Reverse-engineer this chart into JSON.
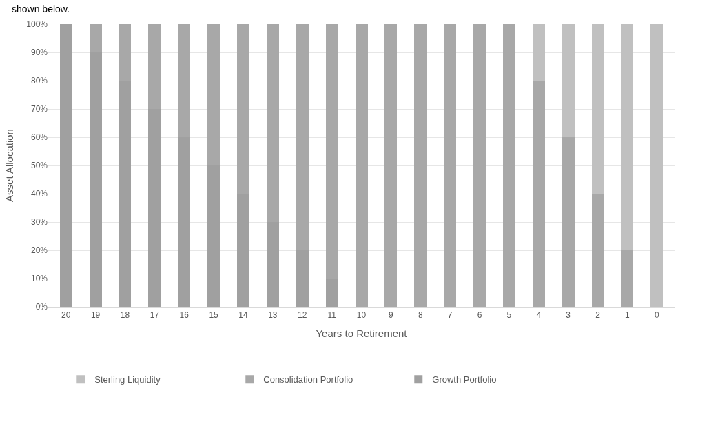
{
  "chart_data": {
    "type": "bar",
    "stacked": true,
    "ylabel": "Asset Allocation",
    "xlabel": "Years to Retirement",
    "annotations": [
      "shown below."
    ],
    "categories": [
      "20",
      "19",
      "18",
      "17",
      "16",
      "15",
      "14",
      "13",
      "12",
      "11",
      "10",
      "9",
      "8",
      "7",
      "6",
      "5",
      "4",
      "3",
      "2",
      "1",
      "0"
    ],
    "series": [
      {
        "name": "Growth Portfolio",
        "color": "#a0a0a0",
        "values": [
          100,
          90,
          80,
          70,
          60,
          50,
          40,
          30,
          20,
          10,
          0,
          0,
          0,
          0,
          0,
          0,
          0,
          0,
          0,
          0,
          0
        ]
      },
      {
        "name": "Consolidation Portfolio",
        "color": "#a8a8a8",
        "values": [
          0,
          10,
          20,
          30,
          40,
          50,
          60,
          70,
          80,
          90,
          100,
          100,
          100,
          100,
          100,
          100,
          80,
          60,
          40,
          20,
          0
        ]
      },
      {
        "name": "Sterling Liquidity",
        "color": "#c0c0c0",
        "values": [
          0,
          0,
          0,
          0,
          0,
          0,
          0,
          0,
          0,
          0,
          0,
          0,
          0,
          0,
          0,
          0,
          20,
          40,
          60,
          80,
          100
        ]
      }
    ],
    "ylim": [
      0,
      100
    ],
    "yticks": [
      {
        "value": 0,
        "label": "0%"
      },
      {
        "value": 10,
        "label": "10%"
      },
      {
        "value": 20,
        "label": "20%"
      },
      {
        "value": 30,
        "label": "30%"
      },
      {
        "value": 40,
        "label": "40%"
      },
      {
        "value": 50,
        "label": "50%"
      },
      {
        "value": 60,
        "label": "60%"
      },
      {
        "value": 70,
        "label": "70%"
      },
      {
        "value": 80,
        "label": "80%"
      },
      {
        "value": 90,
        "label": "90%"
      },
      {
        "value": 100,
        "label": "100%"
      }
    ],
    "grid": "y",
    "legend": "bottom"
  }
}
